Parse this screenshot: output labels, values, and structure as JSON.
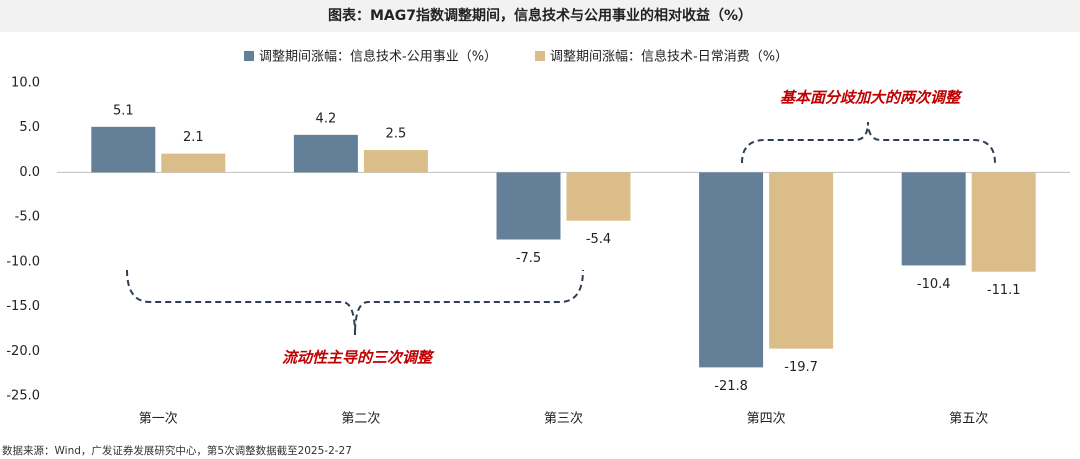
{
  "chart_data": {
    "type": "bar",
    "title": "图表：MAG7指数调整期间，信息技术与公用事业的相对收益（%）",
    "categories": [
      "第一次",
      "第二次",
      "第三次",
      "第四次",
      "第五次"
    ],
    "series": [
      {
        "name": "调整期间涨幅：信息技术-公用事业（%）",
        "color": "#647f98",
        "values": [
          5.1,
          4.2,
          -7.5,
          -21.8,
          -10.4
        ]
      },
      {
        "name": "调整期间涨幅：信息技术-日常消费（%）",
        "color": "#dbbd8a",
        "values": [
          2.1,
          2.5,
          -5.4,
          -19.7,
          -11.1
        ]
      }
    ],
    "ylim": [
      -25,
      10
    ],
    "yticks": [
      {
        "value": 10,
        "label": "10.0"
      },
      {
        "value": 5,
        "label": "5.0"
      },
      {
        "value": 0,
        "label": "0.0"
      },
      {
        "value": -5,
        "label": "-5.0"
      },
      {
        "value": -10,
        "label": "-10.0"
      },
      {
        "value": -15,
        "label": "-15.0"
      },
      {
        "value": -20,
        "label": "-20.0"
      },
      {
        "value": -25,
        "label": "-25.0"
      }
    ],
    "grid": false,
    "annotations": [
      "基本面分歧加大的两次调整",
      "流动性主导的三次调整"
    ],
    "source": "数据来源：Wind，广发证券发展研究中心，第5次调整数据截至2025-2-27"
  }
}
